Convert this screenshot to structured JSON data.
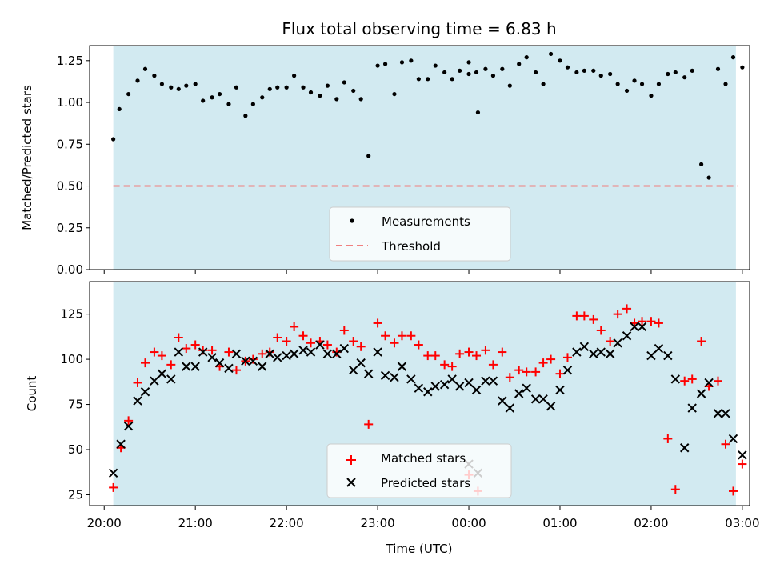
{
  "chart_data": [
    {
      "type": "scatter",
      "title": "Flux total observing time = 6.83 h",
      "xlabel": "",
      "ylabel": "Matched/Predicted stars",
      "ylim": [
        0.0,
        1.34
      ],
      "yticks": [
        "0.00",
        "0.25",
        "0.50",
        "0.75",
        "1.00",
        "1.25"
      ],
      "xlim_hours": [
        19.84,
        27.08
      ],
      "shaded_band_hours": [
        20.1,
        26.93
      ],
      "shade_color": "#add8e6",
      "legend_position": "lower center",
      "series": [
        {
          "name": "Measurements",
          "marker": "dot",
          "color": "#000000",
          "x": [
            "20:06",
            "20:10",
            "20:16",
            "20:22",
            "20:27",
            "20:33",
            "20:38",
            "20:44",
            "20:49",
            "20:54",
            "21:00",
            "21:05",
            "21:11",
            "21:16",
            "21:22",
            "21:27",
            "21:33",
            "21:38",
            "21:44",
            "21:49",
            "21:54",
            "22:00",
            "22:05",
            "22:11",
            "22:16",
            "22:22",
            "22:27",
            "22:33",
            "22:38",
            "22:44",
            "22:49",
            "22:54",
            "23:00",
            "23:05",
            "23:11",
            "23:16",
            "23:22",
            "23:27",
            "23:33",
            "23:38",
            "23:44",
            "23:49",
            "23:54",
            "00:00",
            "00:05",
            "00:11",
            "00:16",
            "00:22",
            "00:27",
            "00:33",
            "00:38",
            "00:44",
            "00:49",
            "00:54",
            "01:00",
            "01:05",
            "01:11",
            "01:16",
            "01:22",
            "01:27",
            "01:33",
            "01:38",
            "01:44",
            "01:49",
            "01:54",
            "02:00",
            "02:05",
            "02:11",
            "02:16",
            "02:22",
            "02:27",
            "02:33",
            "02:38",
            "02:44",
            "02:49",
            "02:54",
            "03:00",
            "00:00",
            "00:06"
          ],
          "values": [
            0.78,
            0.96,
            1.05,
            1.13,
            1.2,
            1.16,
            1.11,
            1.09,
            1.08,
            1.1,
            1.11,
            1.01,
            1.03,
            1.05,
            0.99,
            1.09,
            0.92,
            0.99,
            1.03,
            1.08,
            1.09,
            1.09,
            1.16,
            1.09,
            1.06,
            1.04,
            1.1,
            1.02,
            1.12,
            1.07,
            1.02,
            0.68,
            1.22,
            1.23,
            1.05,
            1.24,
            1.25,
            1.14,
            1.14,
            1.22,
            1.18,
            1.14,
            1.19,
            1.17,
            1.18,
            1.2,
            1.16,
            1.2,
            1.1,
            1.23,
            1.27,
            1.18,
            1.11,
            1.29,
            1.25,
            1.21,
            1.18,
            1.19,
            1.19,
            1.16,
            1.17,
            1.11,
            1.07,
            1.13,
            1.11,
            1.04,
            1.11,
            1.17,
            1.18,
            1.15,
            1.19,
            0.63,
            0.55,
            1.2,
            1.11,
            1.27,
            1.21,
            1.24,
            0.94
          ]
        },
        {
          "name": "Threshold",
          "style": "dashed",
          "color": "#f08080",
          "x": [
            "20:06",
            "02:57"
          ],
          "values": [
            0.5,
            0.5
          ]
        }
      ]
    },
    {
      "type": "scatter",
      "title": "",
      "xlabel": "Time (UTC)",
      "ylabel": "Count",
      "ylim": [
        19,
        143
      ],
      "yticks": [
        "25",
        "50",
        "75",
        "100",
        "125"
      ],
      "xticks": [
        "20:00",
        "21:00",
        "22:00",
        "23:00",
        "00:00",
        "01:00",
        "02:00",
        "03:00"
      ],
      "xlim_hours": [
        19.84,
        27.08
      ],
      "shaded_band_hours": [
        20.1,
        26.93
      ],
      "shade_color": "#add8e6",
      "legend_position": "lower center",
      "x": [
        "20:06",
        "20:11",
        "20:16",
        "20:22",
        "20:27",
        "20:33",
        "20:38",
        "20:44",
        "20:49",
        "20:54",
        "21:00",
        "21:05",
        "21:11",
        "21:16",
        "21:22",
        "21:27",
        "21:33",
        "21:38",
        "21:44",
        "21:49",
        "21:54",
        "22:00",
        "22:05",
        "22:11",
        "22:16",
        "22:22",
        "22:27",
        "22:33",
        "22:38",
        "22:44",
        "22:49",
        "22:54",
        "23:00",
        "23:05",
        "23:11",
        "23:16",
        "23:22",
        "23:27",
        "23:33",
        "23:38",
        "23:44",
        "23:49",
        "23:54",
        "00:00",
        "00:05",
        "00:11",
        "00:16",
        "00:22",
        "00:27",
        "00:33",
        "00:38",
        "00:44",
        "00:49",
        "00:54",
        "01:00",
        "01:05",
        "01:11",
        "01:16",
        "01:22",
        "01:27",
        "01:33",
        "01:38",
        "01:44",
        "01:49",
        "01:54",
        "02:00",
        "02:05",
        "02:11",
        "02:16",
        "02:22",
        "02:27",
        "02:33",
        "02:38",
        "02:44",
        "02:49",
        "02:54",
        "03:00",
        "00:00",
        "00:06"
      ],
      "series": [
        {
          "name": "Matched stars",
          "marker": "plus",
          "color": "#ff0000",
          "values": [
            29,
            51,
            66,
            87,
            98,
            104,
            102,
            97,
            112,
            106,
            108,
            105,
            105,
            96,
            104,
            94,
            99,
            100,
            103,
            104,
            112,
            110,
            118,
            113,
            109,
            110,
            108,
            104,
            116,
            110,
            107,
            64,
            120,
            113,
            109,
            113,
            113,
            108,
            102,
            102,
            97,
            96,
            103,
            104,
            102,
            105,
            97,
            104,
            90,
            94,
            93,
            93,
            98,
            100,
            92,
            101,
            124,
            124,
            122,
            116,
            110,
            125,
            128,
            120,
            121,
            121,
            120,
            56,
            28,
            88,
            89,
            110,
            85,
            88,
            53,
            27,
            42,
            36,
            27
          ]
        },
        {
          "name": "Predicted stars",
          "marker": "x",
          "color": "#000000",
          "values": [
            37,
            53,
            63,
            77,
            82,
            88,
            92,
            89,
            104,
            96,
            96,
            104,
            101,
            98,
            95,
            103,
            99,
            99,
            96,
            103,
            101,
            102,
            103,
            105,
            104,
            108,
            103,
            103,
            106,
            94,
            98,
            92,
            104,
            91,
            90,
            96,
            89,
            84,
            82,
            85,
            86,
            89,
            85,
            87,
            83,
            88,
            88,
            77,
            73,
            81,
            84,
            78,
            78,
            74,
            83,
            94,
            104,
            107,
            103,
            104,
            103,
            109,
            113,
            118,
            118,
            102,
            106,
            102,
            89,
            51,
            73,
            81,
            87,
            70,
            70,
            56,
            47,
            42,
            37
          ]
        }
      ]
    }
  ]
}
